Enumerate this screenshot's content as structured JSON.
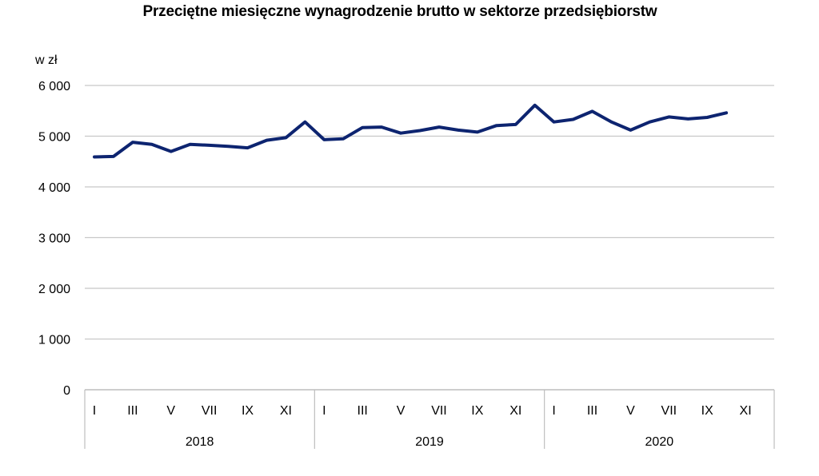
{
  "chart_data": {
    "type": "line",
    "title": "Przeciętne miesięczne wynagrodzenie brutto w sektorze przedsiębiorstw",
    "ylabel": "w zł",
    "ylim": [
      0,
      6000
    ],
    "yticks": [
      0,
      1000,
      2000,
      3000,
      4000,
      5000,
      6000
    ],
    "ytick_labels": [
      "0",
      "1 000",
      "2 000",
      "3 000",
      "4 000",
      "5 000",
      "6 000"
    ],
    "grid": true,
    "legend": "none",
    "line_color": "#0d2470",
    "years": [
      "2018",
      "2019",
      "2020"
    ],
    "month_labels": [
      "I",
      "",
      "III",
      "",
      "V",
      "",
      "VII",
      "",
      "IX",
      "",
      "XI",
      ""
    ],
    "series": [
      {
        "values": [
          4590,
          4600,
          4880,
          4840,
          4700,
          4840,
          4820,
          4800,
          4770,
          4920,
          4970,
          5280,
          4930,
          4950,
          5170,
          5180,
          5060,
          5110,
          5180,
          5120,
          5080,
          5210,
          5230,
          5610,
          5280,
          5330,
          5490,
          5280,
          5120,
          5280,
          5380,
          5340,
          5370,
          5460
        ]
      }
    ]
  }
}
